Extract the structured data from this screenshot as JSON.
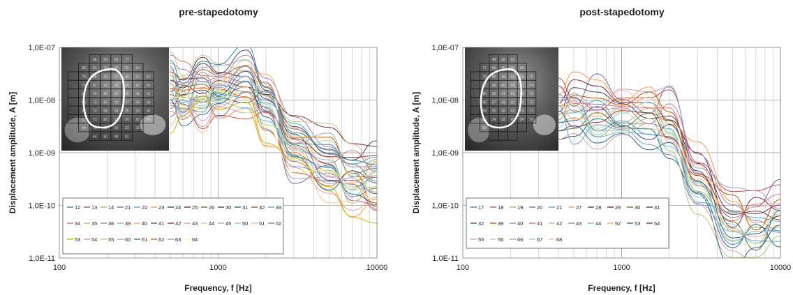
{
  "chart_data": [
    {
      "type": "line",
      "title": "pre-stapedotomy",
      "xlabel": "Frequency, f [Hz]",
      "ylabel": "Displacement amplitude, A [m]",
      "x_scale": "log",
      "y_scale": "log",
      "xlim": [
        100,
        10000
      ],
      "ylim": [
        1e-11,
        1e-07
      ],
      "x_ticks": [
        "100",
        "1000",
        "10000"
      ],
      "y_ticks": [
        "1,0E-11",
        "1,0E-10",
        "1,0E-09",
        "1,0E-08",
        "1,0E-07"
      ],
      "grid": true,
      "legend_position": "bottom-left",
      "series_names": [
        "12",
        "13",
        "14",
        "21",
        "22",
        "23",
        "24",
        "25",
        "26",
        "30",
        "31",
        "32",
        "33",
        "34",
        "35",
        "36",
        "39",
        "40",
        "41",
        "42",
        "43",
        "44",
        "45",
        "50",
        "51",
        "52",
        "53",
        "54",
        "55",
        "60",
        "61",
        "62",
        "63",
        "64"
      ],
      "base_curve": {
        "x": [
          500,
          600,
          800,
          1000,
          1500,
          2000,
          3000,
          5000,
          7000,
          10000
        ],
        "y": [
          1.5e-08,
          1.2e-08,
          1.4e-08,
          1.8e-08,
          2e-08,
          8e-09,
          1.5e-09,
          6e-10,
          4e-10,
          3e-10
        ]
      },
      "photo_grid_numbers": [
        "48",
        "56",
        "65",
        "77",
        "89",
        "91",
        "39",
        "46",
        "55",
        "64",
        "76",
        "88",
        "90",
        "37",
        "44",
        "53",
        "63",
        "75",
        "87",
        "93",
        "28",
        "36",
        "43",
        "50",
        "61",
        "74",
        "86",
        "26",
        "35",
        "41",
        "51",
        "62",
        "73",
        "85",
        "19",
        "27",
        "34",
        "40",
        "52",
        "72",
        "84",
        "18",
        "25",
        "33",
        "42",
        "63",
        "71",
        "83",
        "17",
        "24",
        "32",
        "45",
        "54",
        "70",
        "82",
        "16",
        "23",
        "31",
        "44",
        "60",
        "69",
        "81"
      ]
    },
    {
      "type": "line",
      "title": "post-stapedotomy",
      "xlabel": "Frequency, f [Hz]",
      "ylabel": "Displacement amplitude, A [m]",
      "x_scale": "log",
      "y_scale": "log",
      "xlim": [
        100,
        10000
      ],
      "ylim": [
        1e-11,
        1e-07
      ],
      "x_ticks": [
        "100",
        "1000",
        "10000"
      ],
      "y_ticks": [
        "1,0E-11",
        "1,0E-10",
        "1,0E-09",
        "1,0E-08",
        "1,0E-07"
      ],
      "grid": true,
      "legend_position": "bottom-left",
      "series_names": [
        "17",
        "18",
        "19",
        "20",
        "21",
        "27",
        "28",
        "29",
        "30",
        "31",
        "32",
        "39",
        "40",
        "41",
        "42",
        "43",
        "44",
        "52",
        "53",
        "54",
        "55",
        "56",
        "66",
        "67",
        "68"
      ],
      "base_curve": {
        "x": [
          400,
          500,
          700,
          1000,
          1500,
          2000,
          3000,
          5000,
          7000,
          10000
        ],
        "y": [
          6e-09,
          6e-09,
          5e-09,
          4e-09,
          5e-09,
          3e-09,
          3e-10,
          4e-11,
          5e-11,
          5e-11
        ]
      },
      "photo_grid_numbers": [
        "48",
        "56",
        "65",
        "77",
        "89",
        "46",
        "55",
        "64",
        "76",
        "88",
        "44",
        "53",
        "63",
        "75",
        "87",
        "36",
        "43",
        "50",
        "61",
        "74",
        "86",
        "35",
        "41",
        "51",
        "62",
        "73",
        "85",
        "27",
        "34",
        "40",
        "52",
        "72",
        "84",
        "25",
        "33",
        "42",
        "63",
        "71",
        "83",
        "24",
        "32",
        "45",
        "54",
        "70",
        "82"
      ]
    }
  ],
  "colors": [
    "#4f81bd",
    "#c0504d",
    "#9bbb59",
    "#8064a2",
    "#4bacc6",
    "#f79646",
    "#2c4d75",
    "#772c2a",
    "#5f7530",
    "#4d3b62",
    "#276a7c",
    "#b65708",
    "#729aca",
    "#cd7371",
    "#afc97a",
    "#9d83b5",
    "#6fbdd1",
    "#f9ab6b",
    "#3a5f8f",
    "#943634",
    "#e2a3a1",
    "#c3d69b",
    "#b2a1c7",
    "#93cddd",
    "#fac090",
    "#7f7f7f",
    "#bfbf00",
    "#d99694",
    "#c4bd97",
    "#95b3d7",
    "#31849b",
    "#e46c0a",
    "#a6a6a6",
    "#ffff99"
  ]
}
